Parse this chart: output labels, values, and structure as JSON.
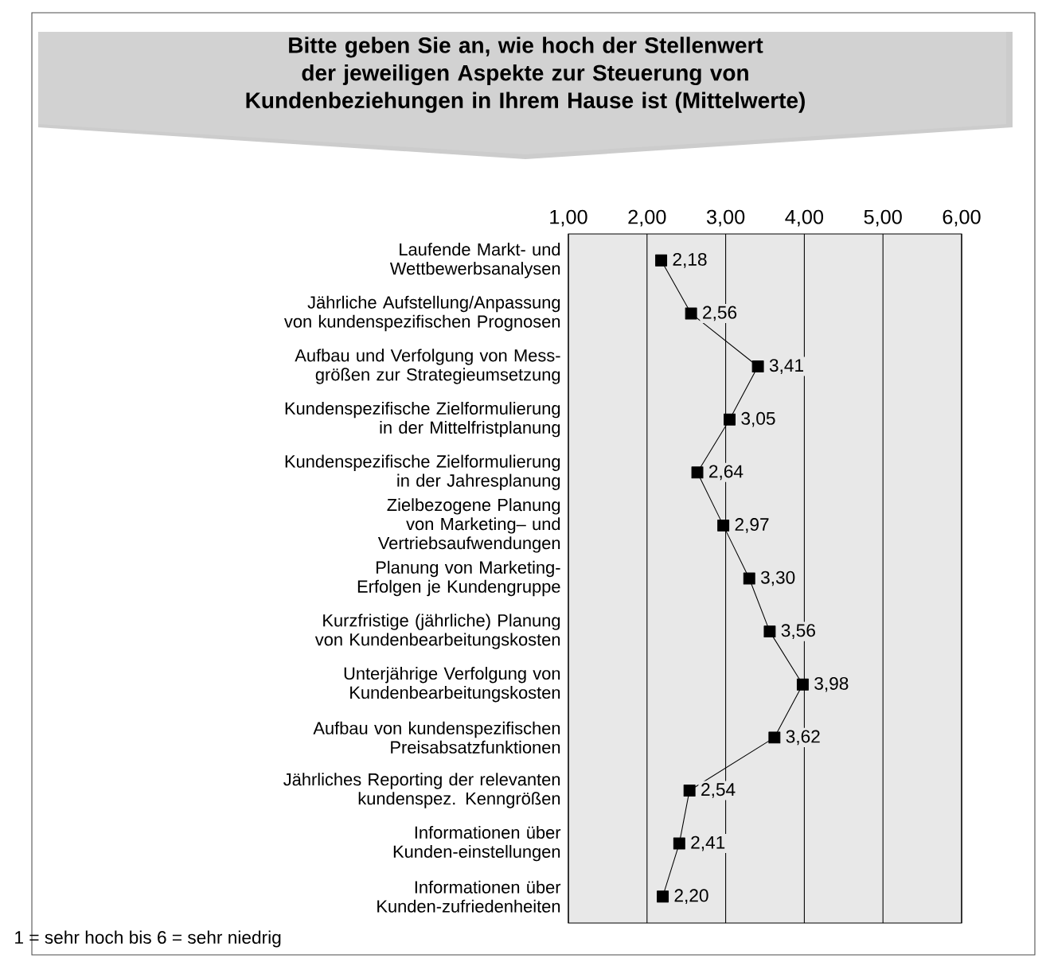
{
  "chart_data": {
    "type": "line",
    "orientation": "horizontal",
    "title": "Bitte geben Sie an, wie hoch der Stellenwert der jeweiligen Aspekte zur Steuerung von Kundenbeziehungen in Ihrem Hause ist (Mittelwerte)",
    "categories": [
      "Laufende Markt- und Wettbewerbsanalysen",
      "Jährliche Aufstellung/Anpassung von kundenspezifischen Prognosen",
      "Aufbau und Verfolgung von Mess-größen zur Strategieumsetzung",
      "Kundenspezifische Zielformulierung in der Mittelfristplanung",
      "Kundenspezifische Zielformulierung in der Jahresplanung",
      "Zielbezogene Planung von Marketing– und Vertriebsaufwendungen",
      "Planung von Marketing-Erfolgen je Kundengruppe",
      "Kurzfristige (jährliche) Planung von Kundenbearbeitungskosten",
      "Unterjährige Verfolgung von Kundenbearbeitungskosten",
      "Aufbau von kundenspezifischen Preisabsatzfunktionen",
      "Jährliches Reporting der relevanten kundenspez. Kenngrößen",
      "Informationen über Kunden-einstellungen",
      "Informationen über Kunden-zufriedenheiten"
    ],
    "values": [
      2.18,
      2.56,
      3.41,
      3.05,
      2.64,
      2.97,
      3.3,
      3.56,
      3.98,
      3.62,
      2.54,
      2.41,
      2.2
    ],
    "value_labels": [
      "2,18",
      "2,56",
      "3,41",
      "3,05",
      "2,64",
      "2,97",
      "3,30",
      "3,56",
      "3,98",
      "3,62",
      "2,54",
      "2,41",
      "2,20"
    ],
    "color": "#000000",
    "marker": "square",
    "xlim": [
      1,
      6
    ],
    "xticks": [
      {
        "value": 1,
        "label": "1,00"
      },
      {
        "value": 2,
        "label": "2,00"
      },
      {
        "value": 3,
        "label": "3,00"
      },
      {
        "value": 4,
        "label": "4,00"
      },
      {
        "value": 5,
        "label": "5,00"
      },
      {
        "value": 6,
        "label": "6,00"
      }
    ],
    "grid": "x",
    "annotations": [
      "1 = sehr hoch bis 6 = sehr niedrig"
    ]
  }
}
